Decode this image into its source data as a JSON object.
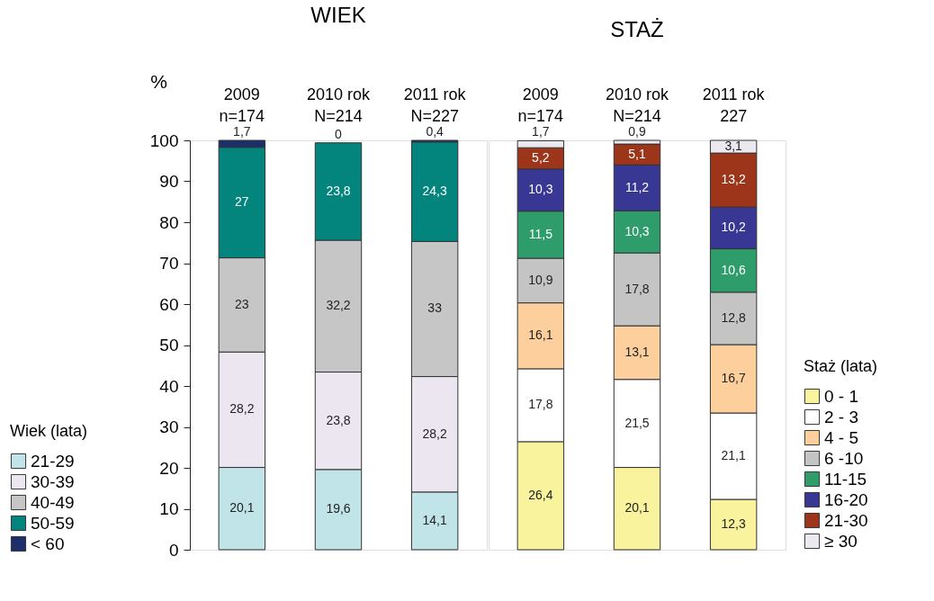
{
  "chart_data": [
    {
      "type": "bar",
      "title": "WIEK",
      "stacked": true,
      "ylabel": "%",
      "legend_title": "Wiek (lata)",
      "legend": "bottom left",
      "categories": [
        "2009\nn=174",
        "2010 rok\nN=214",
        "2011 rok\nN=227"
      ],
      "ylim": [
        0,
        100
      ],
      "yticks": [
        0,
        10,
        20,
        30,
        40,
        50,
        60,
        70,
        80,
        90,
        100
      ],
      "grid": false,
      "series": [
        {
          "name": "21-29",
          "color": "#c0e4e8",
          "values": [
            20.1,
            19.6,
            14.1
          ],
          "value_labels": [
            "20,1",
            "19,6",
            "14,1"
          ]
        },
        {
          "name": "30-39",
          "color": "#ebe6f0",
          "values": [
            28.2,
            23.8,
            28.2
          ],
          "value_labels": [
            "28,2",
            "23,8",
            "28,2"
          ]
        },
        {
          "name": "40-49",
          "color": "#c6c6c6",
          "values": [
            23,
            32.2,
            33
          ],
          "value_labels": [
            "23",
            "32,2",
            "33"
          ]
        },
        {
          "name": "50-59",
          "color": "#03847c",
          "values": [
            27,
            23.8,
            24.3
          ],
          "value_labels": [
            "27",
            "23,8",
            "24,3"
          ]
        },
        {
          "name": "< 60",
          "color": "#1c2f6a",
          "values": [
            1.7,
            0,
            0.4
          ],
          "value_labels": [
            "1,7",
            "0",
            "0,4"
          ]
        }
      ]
    },
    {
      "type": "bar",
      "title": "STAŻ",
      "stacked": true,
      "legend_title": "Staż (lata)",
      "legend": "bottom right",
      "tick_labels": "x",
      "categories": [
        "2009\nn=174",
        "2010 rok\nN=214",
        "2011 rok\n227"
      ],
      "ylim": [
        0,
        100
      ],
      "yticks": [
        0,
        10,
        20,
        30,
        40,
        50,
        60,
        70,
        80,
        90,
        100
      ],
      "grid": false,
      "series": [
        {
          "name": "0 - 1",
          "color": "#f8f39c",
          "values": [
            26.4,
            20.1,
            12.3
          ],
          "value_labels": [
            "26,4",
            "20,1",
            "12,3"
          ]
        },
        {
          "name": "2 - 3",
          "color": "#ffffff",
          "values": [
            17.8,
            21.5,
            21.1
          ],
          "value_labels": [
            "17,8",
            "21,5",
            "21,1"
          ]
        },
        {
          "name": "4 - 5",
          "color": "#fdcf9c",
          "values": [
            16.1,
            13.1,
            16.7
          ],
          "value_labels": [
            "16,1",
            "13,1",
            "16,7"
          ]
        },
        {
          "name": "6 -10",
          "color": "#c4c4c4",
          "values": [
            10.9,
            17.8,
            12.8
          ],
          "value_labels": [
            "10,9",
            "17,8",
            "12,8"
          ]
        },
        {
          "name": "11-15",
          "color": "#2f9c6c",
          "values": [
            11.5,
            10.3,
            10.6
          ],
          "value_labels": [
            "11,5",
            "10,3",
            "10,6"
          ]
        },
        {
          "name": "16-20",
          "color": "#393794",
          "values": [
            10.3,
            11.2,
            10.2
          ],
          "value_labels": [
            "10,3",
            "11,2",
            "10,2"
          ]
        },
        {
          "name": "21-30",
          "color": "#9c3519",
          "values": [
            5.2,
            5.1,
            13.2
          ],
          "value_labels": [
            "5,2",
            "5,1",
            "13,2"
          ]
        },
        {
          "name": "≥ 30",
          "color": "#ece8f0",
          "values": [
            1.7,
            0.9,
            3.1
          ],
          "value_labels": [
            "1,7",
            "0,9",
            "3,1"
          ]
        }
      ]
    }
  ]
}
